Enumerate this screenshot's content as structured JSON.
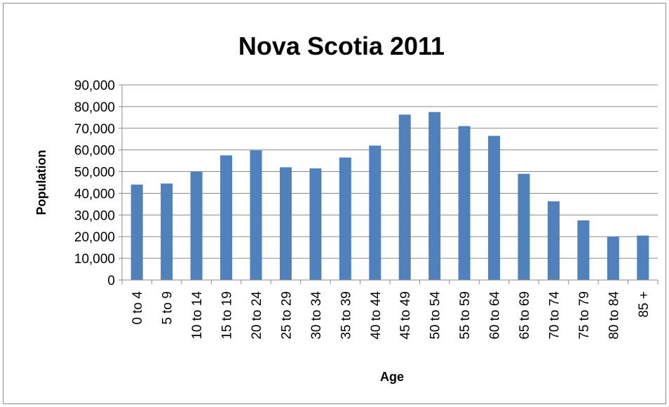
{
  "chart_data": {
    "type": "bar",
    "title": "Nova Scotia 2011",
    "xlabel": "Age",
    "ylabel": "Population",
    "ylim": [
      0,
      90000
    ],
    "ytick_step": 10000,
    "yticks": [
      "0",
      "10,000",
      "20,000",
      "30,000",
      "40,000",
      "50,000",
      "60,000",
      "70,000",
      "80,000",
      "90,000"
    ],
    "categories": [
      "0 to 4",
      "5 to 9",
      "10 to 14",
      "15 to 19",
      "20 to 24",
      "25 to 29",
      "30 to 34",
      "35 to 39",
      "40 to 44",
      "45 to 49",
      "50 to 54",
      "55 to 59",
      "60 to 64",
      "65 to 69",
      "70 to 74",
      "75 to 79",
      "80 to 84",
      "85 +"
    ],
    "series": [
      {
        "values": [
          44000,
          44500,
          50000,
          57500,
          59800,
          52000,
          51500,
          56500,
          62000,
          76300,
          77500,
          71000,
          66500,
          49000,
          36300,
          27500,
          20000,
          20500
        ],
        "color": "#4f81bd"
      }
    ],
    "grid": true,
    "legend": "none"
  }
}
